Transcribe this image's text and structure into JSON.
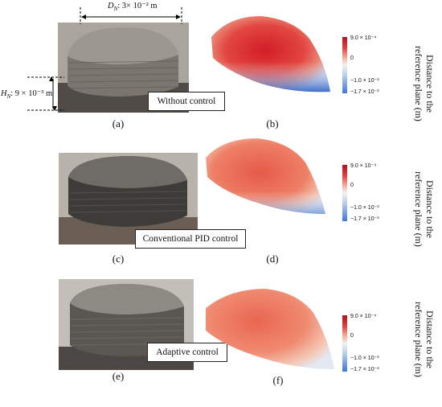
{
  "dimensions": {
    "diameter_label": "D",
    "diameter_sub": "N",
    "diameter_value": ": 3× 10⁻² m",
    "height_label": "H",
    "height_sub": "N",
    "height_value": ": 9 × 10⁻³ m"
  },
  "panels": [
    {
      "photo_caption": "(a)",
      "map_caption": "(b)",
      "control_label": "Without control"
    },
    {
      "photo_caption": "(c)",
      "map_caption": "(d)",
      "control_label": "Conventional PID control"
    },
    {
      "photo_caption": "(e)",
      "map_caption": "(f)",
      "control_label": "Adaptive control"
    }
  ],
  "colorbar": {
    "ticks": [
      "9.0 × 10⁻⁴",
      "0",
      "−1.0 × 10⁻³",
      "−1.7 × 10⁻³"
    ],
    "colors": {
      "max": "#b3111c",
      "zero": "#f2f2f2",
      "min": "#3f78d1"
    }
  },
  "axis_label": {
    "line1": "Distance to the",
    "line2": "reference plane (m)"
  }
}
